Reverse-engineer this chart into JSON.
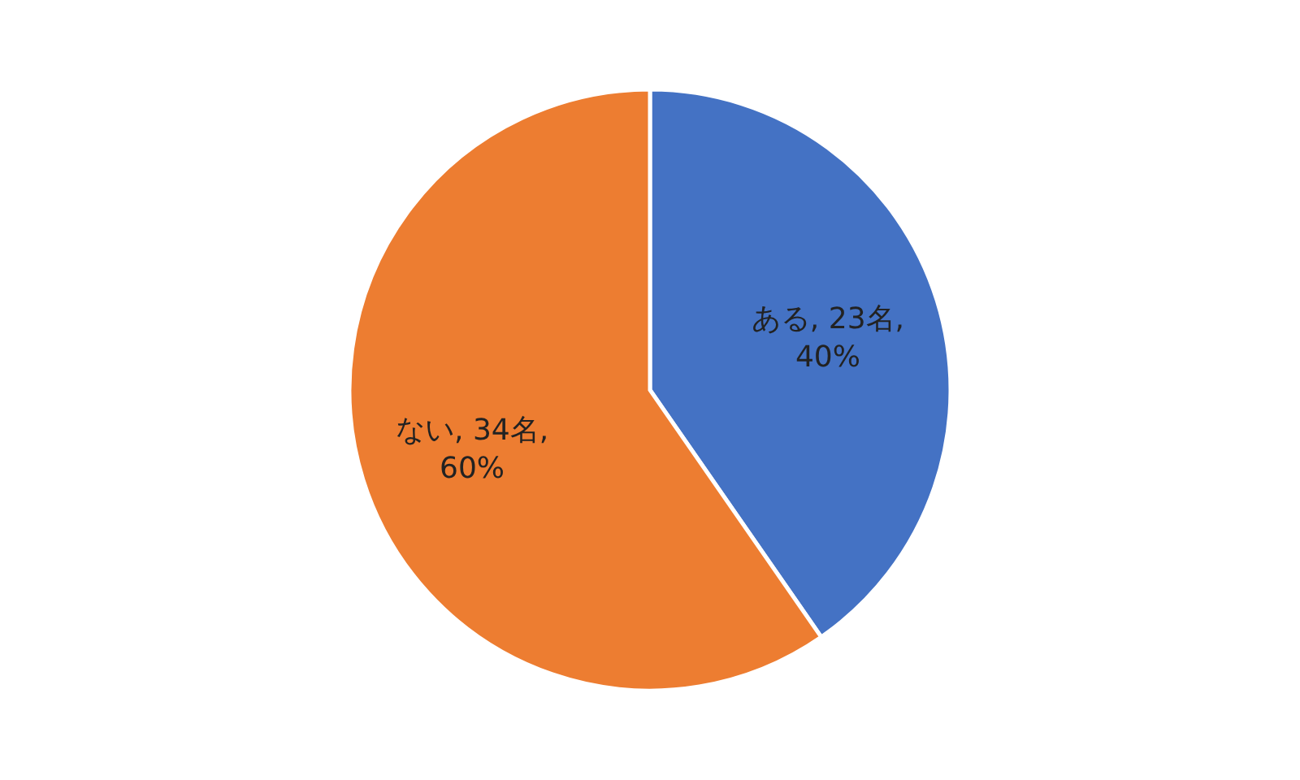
{
  "chart_data": {
    "type": "pie",
    "categories": [
      "ある",
      "ない"
    ],
    "values": [
      23,
      34
    ],
    "colors": [
      "#4472c4",
      "#ed7d31"
    ],
    "value_labels": [
      "23名, 40%",
      "34名, 60%"
    ]
  }
}
